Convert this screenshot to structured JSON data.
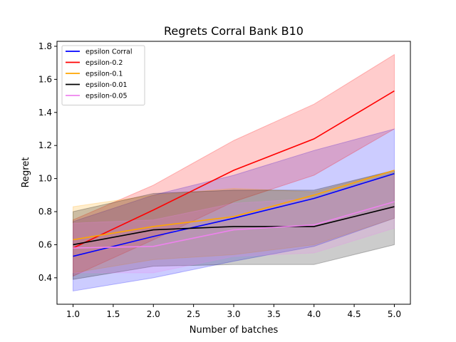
{
  "chart_data": {
    "type": "line",
    "title": "Regrets Corral Bank B10",
    "xlabel": "Number of batches",
    "ylabel": "Regret",
    "xlim": [
      0.8,
      5.2
    ],
    "ylim": [
      0.24,
      1.83
    ],
    "xticks": [
      1.0,
      1.5,
      2.0,
      2.5,
      3.0,
      3.5,
      4.0,
      4.5,
      5.0
    ],
    "yticks": [
      0.4,
      0.6,
      0.8,
      1.0,
      1.2,
      1.4,
      1.6,
      1.8
    ],
    "x": [
      1,
      2,
      3,
      4,
      5
    ],
    "grid": false,
    "legend_position": "top-left",
    "series": [
      {
        "name": "epsilon Corral",
        "color": "#0000ff",
        "values": [
          0.53,
          0.65,
          0.76,
          0.88,
          1.03
        ],
        "lower": [
          0.32,
          0.4,
          0.5,
          0.59,
          0.76
        ],
        "upper": [
          0.74,
          0.9,
          1.02,
          1.17,
          1.3
        ]
      },
      {
        "name": "epsilon-0.2",
        "color": "#ff0000",
        "values": [
          0.58,
          0.81,
          1.05,
          1.24,
          1.53
        ],
        "lower": [
          0.41,
          0.63,
          0.86,
          1.02,
          1.3
        ],
        "upper": [
          0.75,
          0.96,
          1.23,
          1.45,
          1.75
        ]
      },
      {
        "name": "epsilon-0.1",
        "color": "#ffa500",
        "values": [
          0.63,
          0.71,
          0.77,
          0.9,
          1.05
        ],
        "lower": [
          0.43,
          0.51,
          0.54,
          0.6,
          0.76
        ],
        "upper": [
          0.83,
          0.9,
          0.94,
          0.92,
          1.05
        ]
      },
      {
        "name": "epsilon-0.01",
        "color": "#000000",
        "values": [
          0.6,
          0.69,
          0.71,
          0.71,
          0.83
        ],
        "lower": [
          0.39,
          0.47,
          0.48,
          0.48,
          0.6
        ],
        "upper": [
          0.8,
          0.91,
          0.93,
          0.93,
          1.05
        ]
      },
      {
        "name": "epsilon-0.05",
        "color": "#ee82ee",
        "values": [
          0.58,
          0.59,
          0.69,
          0.72,
          0.86
        ],
        "lower": [
          0.43,
          0.43,
          0.53,
          0.55,
          0.7
        ],
        "upper": [
          0.73,
          0.75,
          0.85,
          0.88,
          1.02
        ]
      }
    ]
  }
}
